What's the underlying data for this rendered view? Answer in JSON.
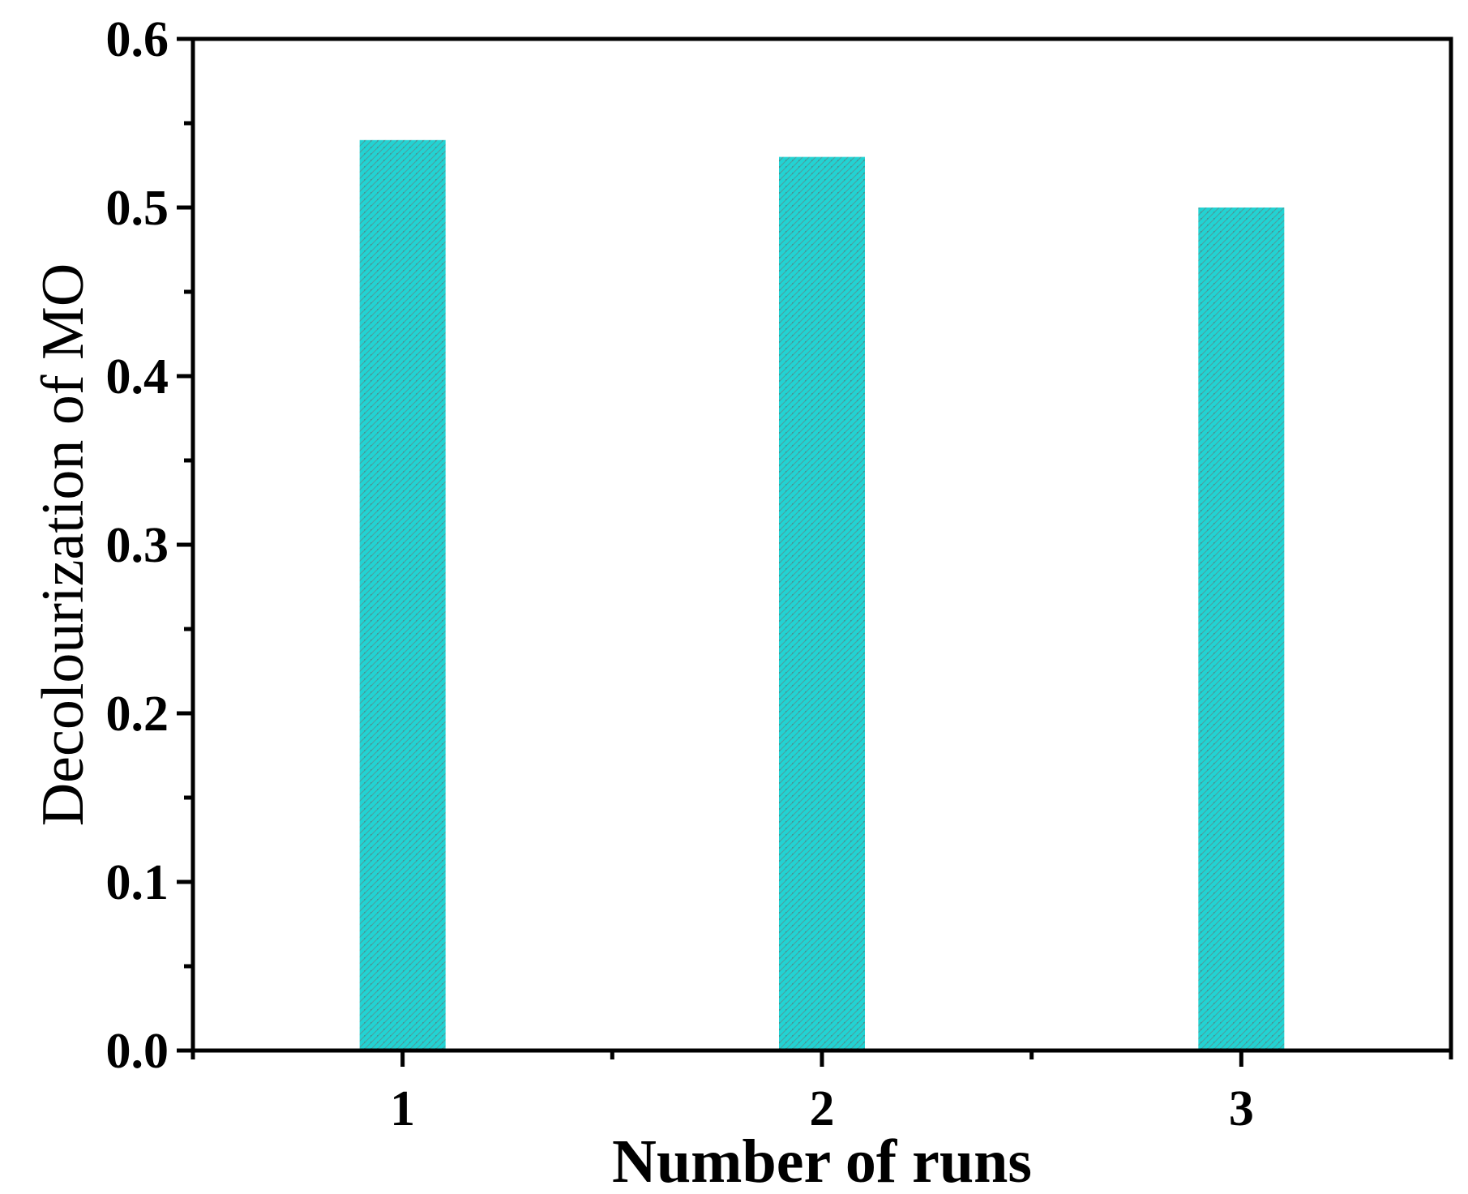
{
  "chart_data": {
    "type": "bar",
    "categories": [
      "1",
      "2",
      "3"
    ],
    "values": [
      0.54,
      0.53,
      0.5
    ],
    "title": "",
    "xlabel": "Number of runs",
    "ylabel": "Decolourization of MO",
    "ylim": [
      0.0,
      0.6
    ],
    "yticks": [
      "0.0",
      "0.1",
      "0.2",
      "0.3",
      "0.4",
      "0.5",
      "0.6"
    ],
    "grid": false,
    "bar_color": "#22d3d3",
    "bar_pattern_color": "#5a8f8f",
    "axis_color": "#000000"
  }
}
